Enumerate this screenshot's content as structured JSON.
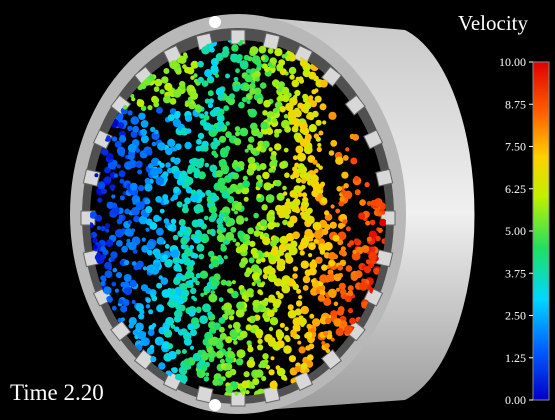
{
  "colorbar": {
    "title": "Velocity",
    "lim": [
      0,
      10
    ],
    "ticks": [
      {
        "value": 0,
        "label": "0.00"
      },
      {
        "value": 1.25,
        "label": "1.25"
      },
      {
        "value": 2.5,
        "label": "2.50"
      },
      {
        "value": 3.75,
        "label": "3.75"
      },
      {
        "value": 5,
        "label": "5.00"
      },
      {
        "value": 6.25,
        "label": "6.25"
      },
      {
        "value": 7.5,
        "label": "7.50"
      },
      {
        "value": 8.75,
        "label": "8.75"
      },
      {
        "value": 10,
        "label": "10.00"
      }
    ]
  },
  "time_label": "Time 2.20"
}
